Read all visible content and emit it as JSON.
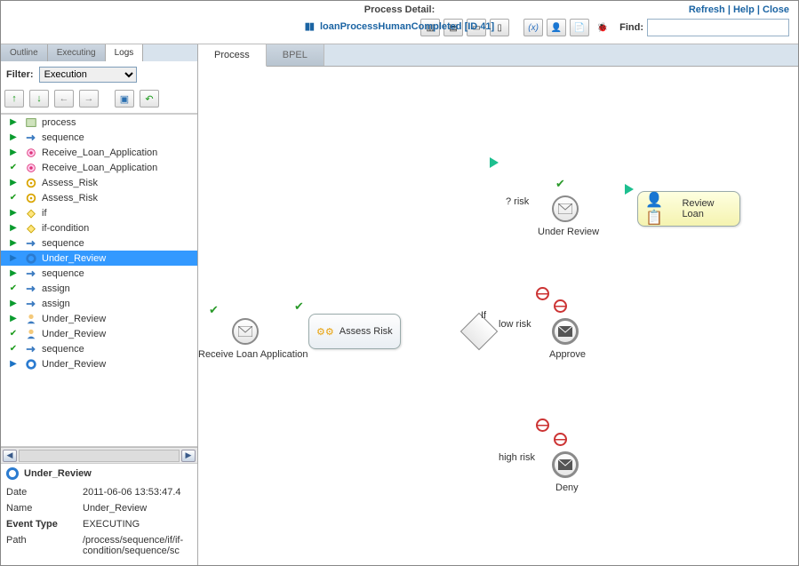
{
  "header": {
    "title": "Process Detail:",
    "subtitle": "loanProcessHumanCompleted [ID 41]",
    "links": {
      "refresh": "Refresh",
      "help": "Help",
      "close": "Close"
    },
    "find_label": "Find:",
    "find_value": ""
  },
  "sidebar": {
    "tabs": [
      "Outline",
      "Executing",
      "Logs"
    ],
    "active_tab": 2,
    "filter_label": "Filter:",
    "filter_value": "Execution",
    "tree": [
      {
        "ind": "▶",
        "indc": "arrow-green",
        "icon": "process",
        "label": "process"
      },
      {
        "ind": "▶",
        "indc": "arrow-green",
        "icon": "seq",
        "label": "sequence"
      },
      {
        "ind": "▶",
        "indc": "arrow-green",
        "icon": "receive",
        "label": "Receive_Loan_Application"
      },
      {
        "ind": "✔",
        "indc": "check-green",
        "icon": "receive",
        "label": "Receive_Loan_Application"
      },
      {
        "ind": "▶",
        "indc": "arrow-green",
        "icon": "invoke",
        "label": "Assess_Risk"
      },
      {
        "ind": "✔",
        "indc": "check-green",
        "icon": "invoke",
        "label": "Assess_Risk"
      },
      {
        "ind": "▶",
        "indc": "arrow-green",
        "icon": "if",
        "label": "if"
      },
      {
        "ind": "▶",
        "indc": "arrow-green",
        "icon": "if",
        "label": "if-condition"
      },
      {
        "ind": "▶",
        "indc": "arrow-green",
        "icon": "seq",
        "label": "sequence"
      },
      {
        "ind": "▶",
        "indc": "arrow-blue",
        "icon": "ring",
        "label": "Under_Review",
        "selected": true
      },
      {
        "ind": "▶",
        "indc": "arrow-green",
        "icon": "seq",
        "label": "sequence"
      },
      {
        "ind": "✔",
        "indc": "check-green",
        "icon": "seq",
        "label": "assign"
      },
      {
        "ind": "▶",
        "indc": "arrow-green",
        "icon": "seq",
        "label": "assign"
      },
      {
        "ind": "▶",
        "indc": "arrow-green",
        "icon": "human",
        "label": "Under_Review"
      },
      {
        "ind": "✔",
        "indc": "check-green",
        "icon": "human",
        "label": "Under_Review"
      },
      {
        "ind": "✔",
        "indc": "check-green",
        "icon": "seq",
        "label": "sequence"
      },
      {
        "ind": "▶",
        "indc": "arrow-blue",
        "icon": "ring",
        "label": "Under_Review"
      }
    ],
    "selected": {
      "label": "Under_Review",
      "props": {
        "date_k": "Date",
        "date_v": "2011-06-06 13:53:47.4",
        "name_k": "Name",
        "name_v": "Under_Review",
        "event_k": "Event Type",
        "event_v": "EXECUTING",
        "path_k": "Path",
        "path_v": "/process/sequence/if/if-condition/sequence/sc"
      }
    }
  },
  "content": {
    "tabs": [
      "Process",
      "BPEL"
    ],
    "active_tab": 0,
    "nodes": {
      "receive": {
        "label": "Receive Loan Application"
      },
      "assess": {
        "label": "Assess Risk"
      },
      "if": {
        "label": "If"
      },
      "risk_q": {
        "label": "? risk"
      },
      "low": {
        "label": "low risk"
      },
      "high": {
        "label": "high risk"
      },
      "under_review": {
        "label": "Under Review"
      },
      "approve": {
        "label": "Approve"
      },
      "deny": {
        "label": "Deny"
      },
      "review": {
        "label": "Review Loan"
      }
    },
    "colors": {
      "edge": "#808080",
      "check": "#2a9a2a",
      "play": "#1dbf8f",
      "forbid": "#c43a3a",
      "hl_bg": "#fdfad0",
      "link_blue": "#1b64a3"
    }
  }
}
